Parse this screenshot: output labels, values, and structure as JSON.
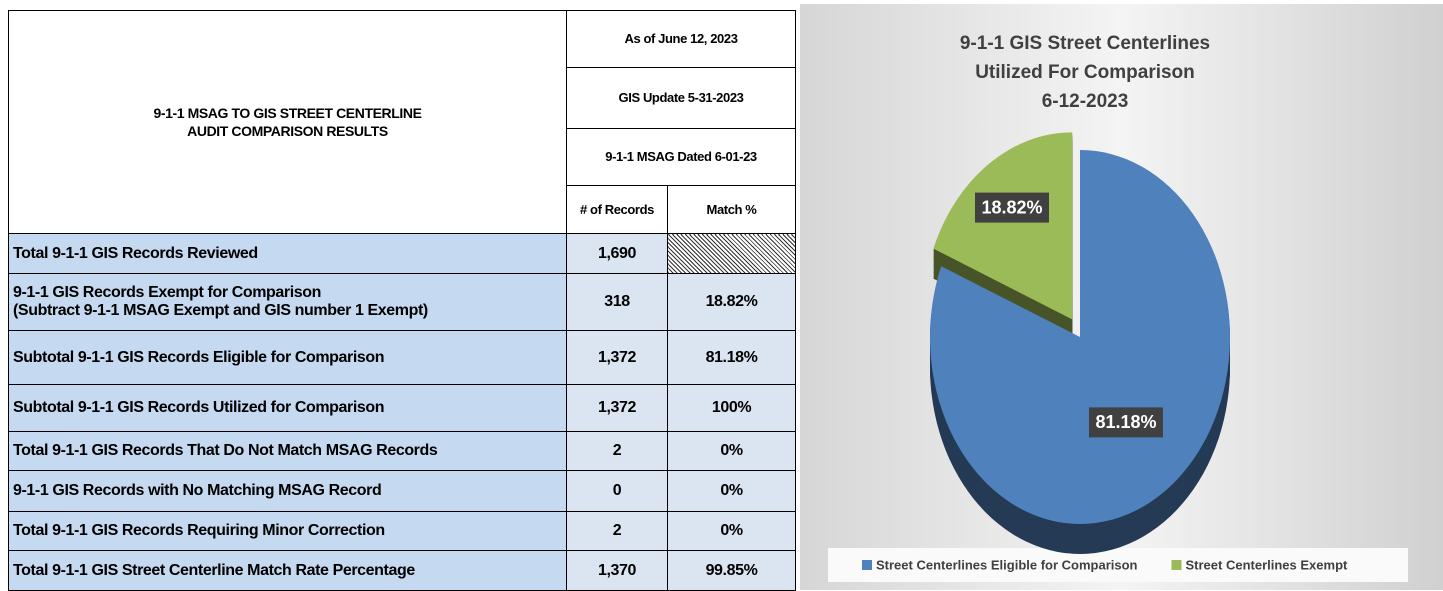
{
  "table": {
    "title_lines": [
      "9-1-1 MSAG TO GIS STREET CENTERLINE",
      "AUDIT COMPARISON RESULTS"
    ],
    "header_rows": [
      "As of June 12, 2023",
      "GIS Update 5-31-2023",
      "9-1-1 MSAG Dated 6-01-23"
    ],
    "column_headers": [
      "# of Records",
      "Match %"
    ],
    "rows": [
      {
        "label": [
          "Total 9-1-1 GIS Records Reviewed"
        ],
        "records": "1,690"
      },
      {
        "label": [
          "9-1-1 GIS Records Exempt for Comparison",
          "(Subtract 9-1-1 MSAG Exempt and GIS number 1 Exempt)"
        ],
        "records": "318",
        "match": "18.82%"
      },
      {
        "label": [
          "Subtotal 9-1-1 GIS Records Eligible for Comparison"
        ],
        "records": "1,372",
        "match": "81.18%"
      },
      {
        "label": [
          "Subtotal 9-1-1 GIS Records Utilized for Comparison"
        ],
        "records": "1,372",
        "match": "100%"
      },
      {
        "label": [
          "Total 9-1-1 GIS Records That Do Not Match MSAG Records"
        ],
        "records": "2",
        "match": "0%"
      },
      {
        "label": [
          "9-1-1 GIS Records with No Matching MSAG Record"
        ],
        "records": "0",
        "match": "0%"
      },
      {
        "label": [
          "Total 9-1-1 GIS Records Requiring Minor Correction"
        ],
        "records": "2",
        "match": "0%"
      },
      {
        "label": [
          "Total 9-1-1 GIS Street Centerline Match Rate Percentage"
        ],
        "records": "1,370",
        "match": "99.85%"
      }
    ]
  },
  "chart_data": {
    "type": "pie",
    "title_lines": [
      "9-1-1 GIS Street Centerlines",
      "Utilized For Comparison",
      "6-12-2023"
    ],
    "categories": [
      "Street Centerlines Eligible for Comparison",
      "Street Centerlines Exempt"
    ],
    "values": [
      81.18,
      18.82
    ],
    "value_labels": [
      "81.18%",
      "18.82%"
    ],
    "colors": [
      "#4f81bd",
      "#9bbb59"
    ],
    "legend": "bottom"
  }
}
